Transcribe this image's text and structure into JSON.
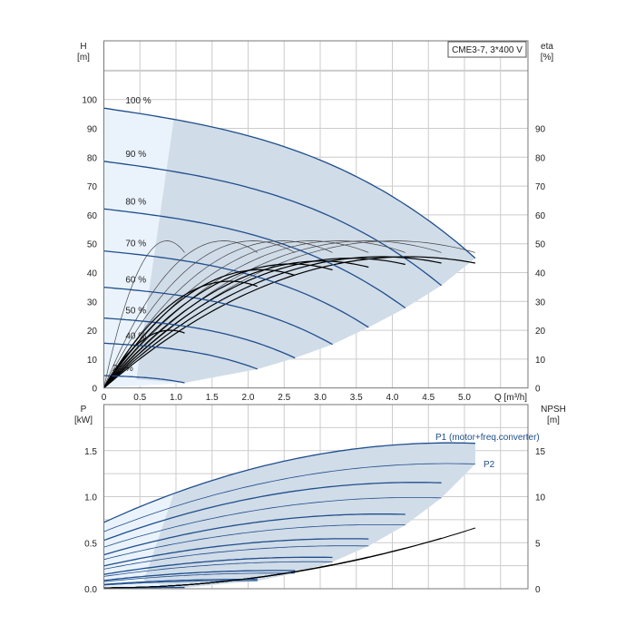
{
  "chart_data": [
    {
      "type": "line",
      "title": "CME3-7, 3*400 V",
      "xlabel": "Q [m³/h]",
      "ylabel": "H [m]",
      "y2label": "eta [%]",
      "y_left_title": "H",
      "y_left_unit": "[m]",
      "y_right_title": "eta",
      "y_right_unit": "[%]",
      "xlim": [
        0,
        5.87
      ],
      "ylim": [
        0,
        120
      ],
      "grid": true,
      "x_ticks": [
        "0",
        "0.5",
        "1.0",
        "1.5",
        "2.0",
        "2.5",
        "3.0",
        "3.5",
        "4.0",
        "4.5",
        "5.0"
      ],
      "y_ticks": [
        "0",
        "10",
        "20",
        "30",
        "40",
        "50",
        "60",
        "70",
        "80",
        "90",
        "100"
      ],
      "y2_ticks": [
        "0",
        "10",
        "20",
        "30",
        "40",
        "50",
        "60",
        "70",
        "80",
        "90"
      ],
      "speeds": [
        {
          "label": "100 %",
          "s": 1.0,
          "q_end": 5.15,
          "eta_total_peak": 45.5
        },
        {
          "label": "90 %",
          "s": 0.9,
          "q_end": 4.68,
          "eta_total_peak": 45.5
        },
        {
          "label": "80 %",
          "s": 0.8,
          "q_end": 4.18,
          "eta_total_peak": 45
        },
        {
          "label": "70 %",
          "s": 0.7,
          "q_end": 3.67,
          "eta_total_peak": 44
        },
        {
          "label": "60 %",
          "s": 0.6,
          "q_end": 3.17,
          "eta_total_peak": 43
        },
        {
          "label": "50 %",
          "s": 0.5,
          "q_end": 2.65,
          "eta_total_peak": 41
        },
        {
          "label": "40 %",
          "s": 0.4,
          "q_end": 2.13,
          "eta_total_peak": 37
        },
        {
          "label": "21 %",
          "s": 0.21,
          "q_end": 1.12,
          "eta_total_peak": 20
        }
      ],
      "h_curve_100": {
        "shutoff_head": 97,
        "points": [
          [
            0,
            97
          ],
          [
            1.0,
            93
          ],
          [
            3.0,
            79
          ],
          [
            5.15,
            45
          ]
        ]
      },
      "eta_pump_peak": 51
    },
    {
      "type": "line",
      "xlabel": "Q [m³/h]",
      "y_left_title": "P",
      "y_left_unit": "[kW]",
      "y_right_title": "NPSH",
      "y_right_unit": "[m]",
      "xlim": [
        0,
        5.87
      ],
      "ylim": [
        0,
        2.0
      ],
      "y2lim": [
        0,
        20
      ],
      "grid": true,
      "y_ticks": [
        "0.0",
        "0.5",
        "1.0",
        "1.5"
      ],
      "y2_ticks": [
        "0",
        "5",
        "10",
        "15"
      ],
      "series": [
        {
          "name": "P1 (motor+freq.converter)",
          "points_100": [
            [
              0,
              0.72
            ],
            [
              1.0,
              1.04
            ],
            [
              4.8,
              1.61
            ],
            [
              5.15,
              1.58
            ]
          ]
        },
        {
          "name": "P2",
          "points_100": [
            [
              0,
              0.62
            ],
            [
              4.8,
              1.43
            ],
            [
              5.15,
              1.41
            ]
          ]
        }
      ],
      "npsh_end_100": 6.6
    }
  ],
  "colors": {
    "curve": "#1f4e8c",
    "eta": "#000000",
    "region": "#d0dce8",
    "region_light": "#eaf3fc",
    "grid": "#cccccc"
  }
}
